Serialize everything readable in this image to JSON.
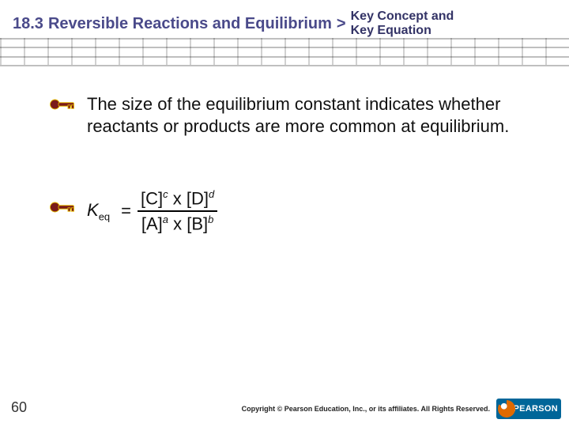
{
  "header": {
    "section_number": "18.3",
    "section_title": "Reversible Reactions and Equilibrium",
    "subtitle_line1": "Key Concept and",
    "subtitle_line2": "Key Equation",
    "title_color": "#4a4a8a",
    "subtitle_color": "#333366",
    "title_fontsize": 20,
    "subtitle_fontsize": 16
  },
  "grid": {
    "row_count": 3,
    "col_count": 24,
    "line_color": "rgba(0,0,0,0.22)"
  },
  "body": {
    "paragraph": "The size of the equilibrium constant indicates whether reactants or products are more common at equilibrium.",
    "fontsize": 22,
    "text_color": "#111111"
  },
  "equation": {
    "lhs_symbol": "K",
    "lhs_subscript": "eq",
    "numerator": "[C]c x [D]d",
    "numerator_html": "[C]<span class='sup'>c</span> x [D]<span class='sup'>d</span>",
    "denominator": "[A]a x [B]b",
    "denominator_html": "[A]<span class='sup'>a</span> x [B]<span class='sup'>b</span>"
  },
  "key_icon": {
    "fill": "#7a1a1a",
    "stroke": "#e6b800"
  },
  "footer": {
    "page_number": "60",
    "copyright": "Copyright © Pearson Education, Inc., or its affiliates. All Rights Reserved.",
    "logo_text": "PEARSON",
    "logo_bg": "#006699"
  }
}
